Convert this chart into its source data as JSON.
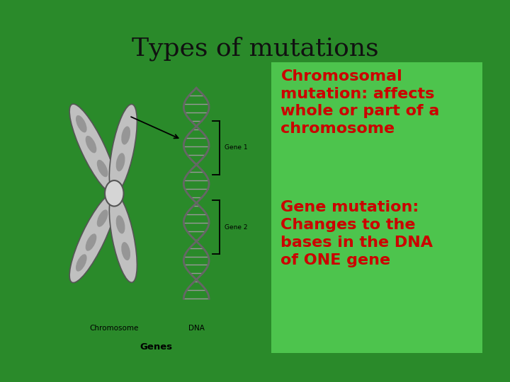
{
  "title": "Types of mutations",
  "title_fontsize": 26,
  "title_color": "#111111",
  "outer_bg_color": "#2a8a2a",
  "inner_bg_color": "#ffffff",
  "green_box_color": "#4dc44d",
  "text1": "Chromosomal\nmutation: affects\nwhole or part of a\nchromosome",
  "text2": "Gene mutation:\nChanges to the\nbases in the DNA\nof ONE gene",
  "text_color": "#cc0000",
  "text_fontsize": 16,
  "label_chromosome": "Chromosome",
  "label_dna": "DNA",
  "label_genes": "Genes",
  "label_gene1": "Gene 1",
  "label_gene2": "Gene 2",
  "arm_color": "#c0c0c0",
  "arm_edge_color": "#555555",
  "band_color": "#888888",
  "helix_color": "#666666",
  "rung_color": "#999999"
}
